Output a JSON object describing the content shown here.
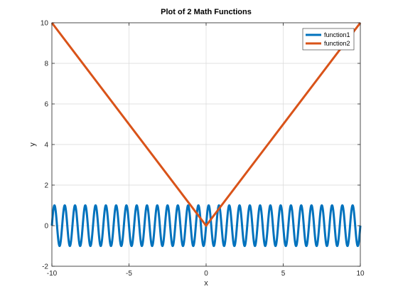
{
  "chart_data": {
    "type": "line",
    "title": "Plot of 2 Math Functions",
    "xlabel": "x",
    "ylabel": "y",
    "xlim": [
      -10,
      10
    ],
    "ylim": [
      -2,
      10
    ],
    "xticks": [
      -10,
      -5,
      0,
      5,
      10
    ],
    "yticks": [
      -2,
      0,
      2,
      4,
      6,
      8,
      10
    ],
    "grid": true,
    "legend_position": "top-right",
    "series": [
      {
        "name": "function1",
        "color": "#0072bd",
        "function": "sin(2*pi*x*1.5)",
        "x": [
          -10,
          10
        ],
        "description": "sine wave, amplitude 1, 30 cycles over [-10,10]"
      },
      {
        "name": "function2",
        "color": "#d95319",
        "function": "abs(x)",
        "x": [
          -10,
          0,
          10
        ],
        "values": [
          10,
          0,
          10
        ]
      }
    ]
  }
}
